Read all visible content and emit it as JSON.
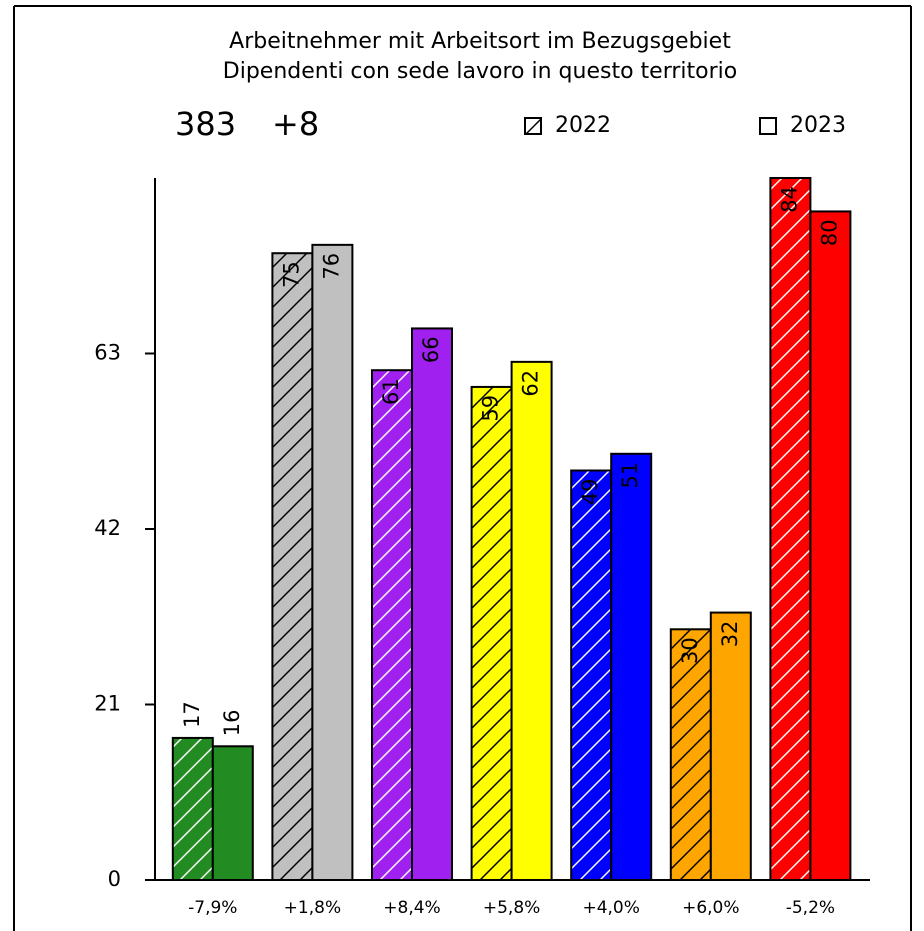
{
  "chart_data": {
    "type": "bar",
    "title": [
      "Arbeitnehmer mit Arbeitsort im Bezugsgebiet",
      "Dipendenti con sede lavoro in questo territorio"
    ],
    "total": 383,
    "change": {
      "value": 8,
      "label": "+8"
    },
    "categories": [
      "-7,9%",
      "+1,8%",
      "+8,4%",
      "+5,8%",
      "+4,0%",
      "+6,0%",
      "-5,2%"
    ],
    "colors": [
      "#228b22",
      "#c0c0c0",
      "#a020f0",
      "#ffff00",
      "#0000ff",
      "#ffa500",
      "#ff0000"
    ],
    "hatch_colors": [
      "#ffffff",
      "#000000",
      "#ffffff",
      "#000000",
      "#ffffff",
      "#000000",
      "#ffffff"
    ],
    "series": [
      {
        "name": "2022",
        "hatched": true,
        "values": [
          17,
          75,
          61,
          59,
          49,
          30,
          84
        ]
      },
      {
        "name": "2023",
        "hatched": false,
        "values": [
          16,
          76,
          66,
          62,
          51,
          32,
          80
        ]
      }
    ],
    "ylim": [
      0,
      84
    ],
    "yticks": [
      0,
      21,
      42,
      63
    ]
  }
}
